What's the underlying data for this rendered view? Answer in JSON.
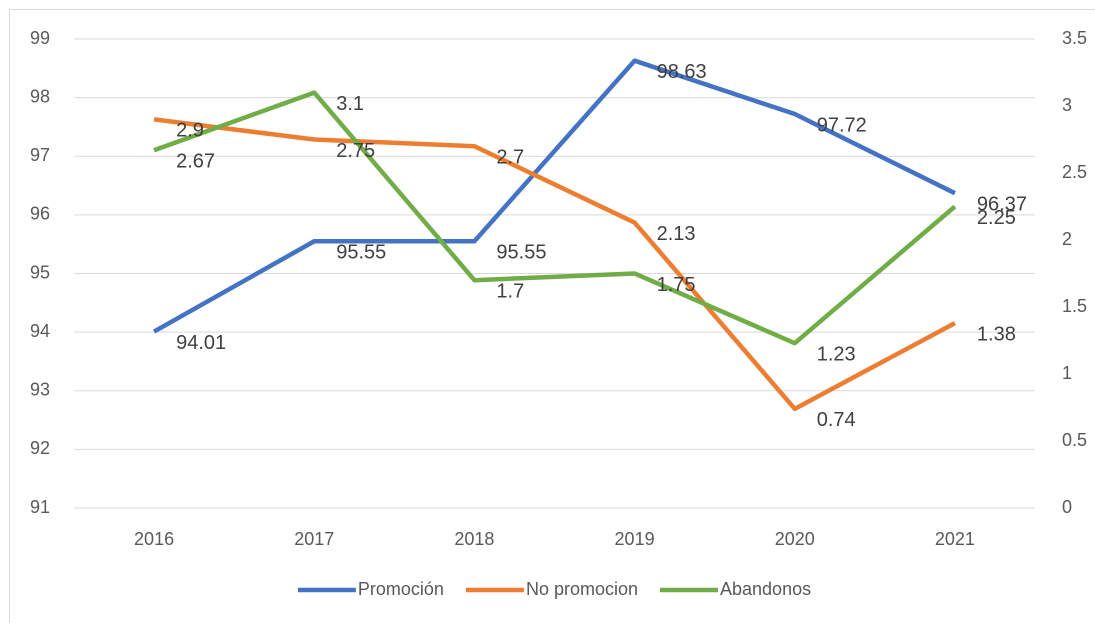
{
  "chart_data": {
    "type": "line",
    "categories": [
      "2016",
      "2017",
      "2018",
      "2019",
      "2020",
      "2021"
    ],
    "series": [
      {
        "name": "Promoción",
        "color": "#4472c4",
        "values": [
          94.01,
          95.55,
          95.55,
          98.63,
          97.72,
          96.37
        ]
      },
      {
        "name": "No promocion",
        "color": "#ed7d31",
        "axis": "y2",
        "values": [
          2.9,
          2.75,
          2.7,
          2.13,
          0.74,
          1.38
        ]
      },
      {
        "name": "Abandonos",
        "color": "#70ad47",
        "axis": "y2",
        "values": [
          2.67,
          3.1,
          1.7,
          1.75,
          1.23,
          2.25
        ]
      }
    ],
    "ylim": [
      91,
      99
    ],
    "yticks": [
      91,
      92,
      93,
      94,
      95,
      96,
      97,
      98,
      99
    ],
    "y2lim": [
      0,
      3.5
    ],
    "y2ticks": [
      0,
      0.5,
      1,
      1.5,
      2,
      2.5,
      3,
      3.5
    ],
    "grid": true,
    "legend": "bottom"
  }
}
